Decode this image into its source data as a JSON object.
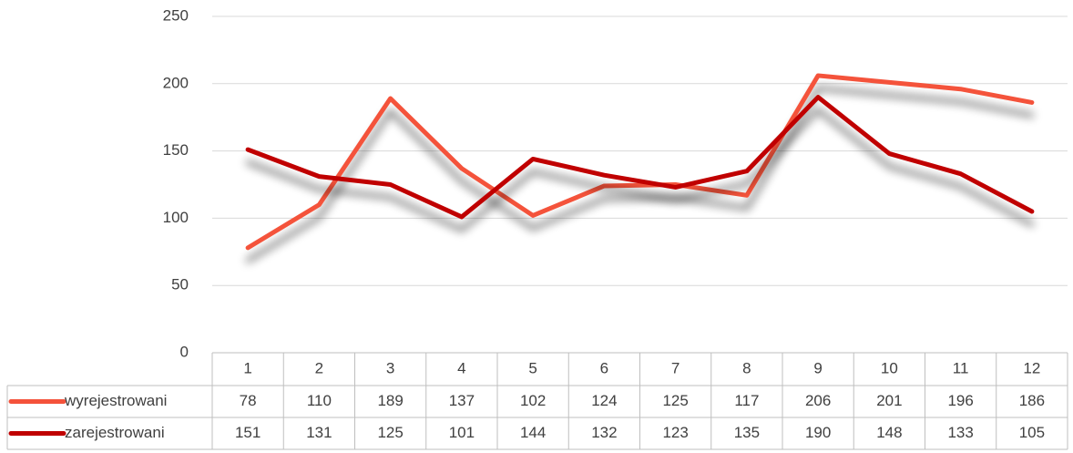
{
  "chart_data": {
    "type": "line",
    "categories": [
      1,
      2,
      3,
      4,
      5,
      6,
      7,
      8,
      9,
      10,
      11,
      12
    ],
    "series": [
      {
        "name": "wyrejestrowani",
        "color": "#f4523b",
        "values": [
          78,
          110,
          189,
          137,
          102,
          124,
          125,
          117,
          206,
          201,
          196,
          186
        ]
      },
      {
        "name": "zarejestrowani",
        "color": "#c00000",
        "values": [
          151,
          131,
          125,
          101,
          144,
          132,
          123,
          135,
          190,
          148,
          133,
          105
        ]
      }
    ],
    "ylim": [
      0,
      250
    ],
    "yticks": [
      0,
      50,
      100,
      150,
      200,
      250
    ],
    "grid": true,
    "data_table": true
  }
}
